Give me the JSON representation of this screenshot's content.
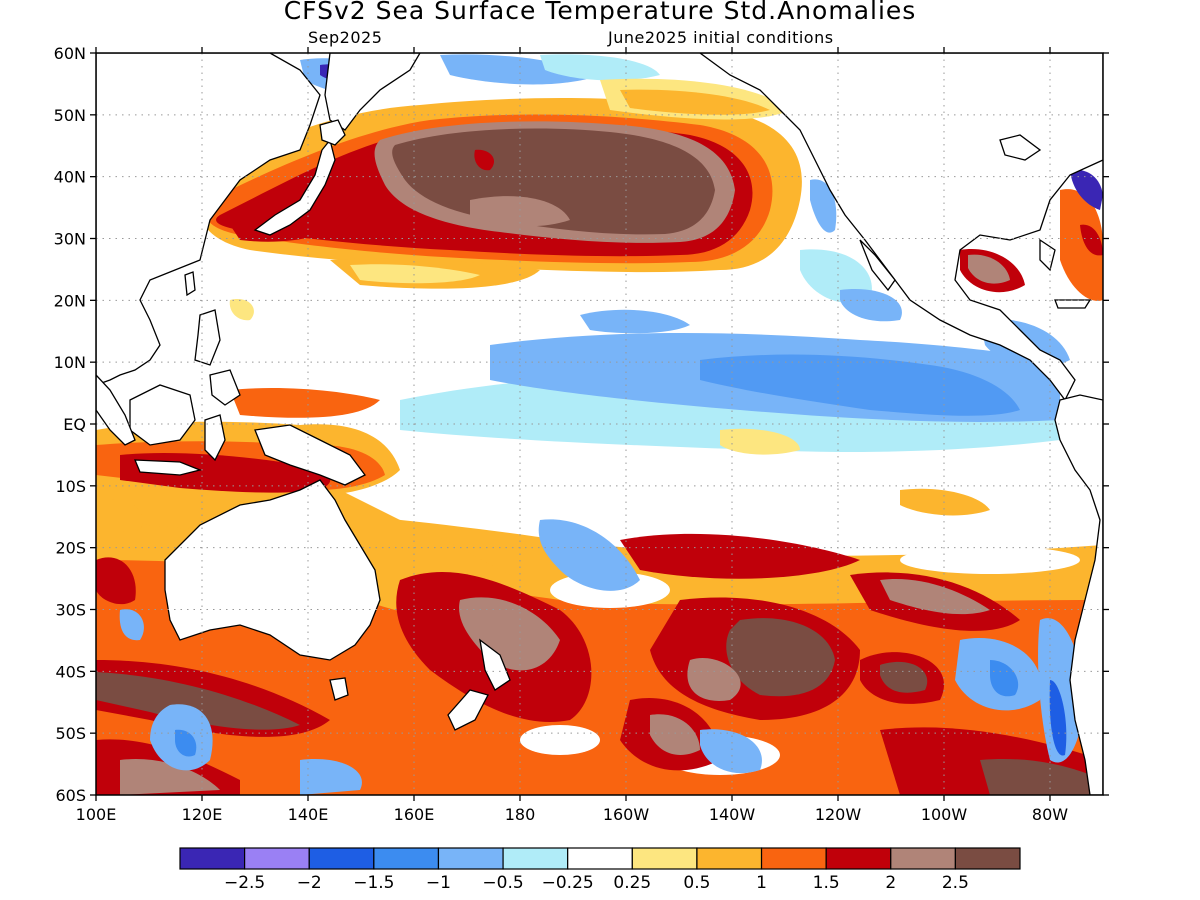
{
  "title": "CFSv2 Sea Surface Temperature Std.Anomalies",
  "subtitle_left": "Sep2025",
  "subtitle_right": "June2025 initial conditions",
  "map": {
    "lon_range": [
      100,
      290
    ],
    "lat_range": [
      -60,
      60
    ],
    "lat_labels": [
      {
        "lat": 60,
        "label": "60N"
      },
      {
        "lat": 50,
        "label": "50N"
      },
      {
        "lat": 40,
        "label": "40N"
      },
      {
        "lat": 30,
        "label": "30N"
      },
      {
        "lat": 20,
        "label": "20N"
      },
      {
        "lat": 10,
        "label": "10N"
      },
      {
        "lat": 0,
        "label": "EQ"
      },
      {
        "lat": -10,
        "label": "10S"
      },
      {
        "lat": -20,
        "label": "20S"
      },
      {
        "lat": -30,
        "label": "30S"
      },
      {
        "lat": -40,
        "label": "40S"
      },
      {
        "lat": -50,
        "label": "50S"
      },
      {
        "lat": -60,
        "label": "60S"
      }
    ],
    "lon_labels": [
      {
        "lon": 100,
        "label": "100E"
      },
      {
        "lon": 120,
        "label": "120E"
      },
      {
        "lon": 140,
        "label": "140E"
      },
      {
        "lon": 160,
        "label": "160E"
      },
      {
        "lon": 180,
        "label": "180"
      },
      {
        "lon": 200,
        "label": "160W"
      },
      {
        "lon": 220,
        "label": "140W"
      },
      {
        "lon": 240,
        "label": "120W"
      },
      {
        "lon": 260,
        "label": "100W"
      },
      {
        "lon": 280,
        "label": "80W"
      }
    ],
    "gridlines": "dotted"
  },
  "colorbar": {
    "colors": [
      "#3a26b4",
      "#9a80f4",
      "#1e5ee4",
      "#3c8cf0",
      "#78b4f8",
      "#b0ecf8",
      "#ffffff",
      "#fde680",
      "#fcb52e",
      "#f96410",
      "#c0000a",
      "#b08478",
      "#7a4c42"
    ],
    "labels": [
      "-2.5",
      "-2",
      "-1.5",
      "-1",
      "-0.5",
      "-0.25",
      "0.25",
      "0.5",
      "1",
      "1.5",
      "2",
      "2.5"
    ]
  },
  "anomaly_features": [
    {
      "name": "North Pacific warm blob",
      "level": "2.5",
      "lon": [
        163,
        222
      ],
      "lat": [
        30,
        47
      ]
    },
    {
      "name": "Equatorial cold tongue",
      "level": "-1",
      "lon": [
        190,
        280
      ],
      "lat": [
        -3,
        12
      ]
    },
    {
      "name": "Maritime Continent warm",
      "level": "2",
      "lon": [
        110,
        160
      ],
      "lat": [
        -12,
        -4
      ]
    },
    {
      "name": "South Pacific warm",
      "level": "2.5",
      "lon": [
        215,
        245
      ],
      "lat": [
        -45,
        -30
      ]
    },
    {
      "name": "Southern Indian Ocean warm",
      "level": "2.5",
      "lon": [
        100,
        135
      ],
      "lat": [
        -48,
        -40
      ]
    },
    {
      "name": "Gulf of Mexico warm",
      "level": "2",
      "lon": [
        262,
        278
      ],
      "lat": [
        20,
        30
      ]
    },
    {
      "name": "Off Chile cold",
      "level": "-2",
      "lon": [
        275,
        285
      ],
      "lat": [
        -55,
        -35
      ]
    }
  ]
}
